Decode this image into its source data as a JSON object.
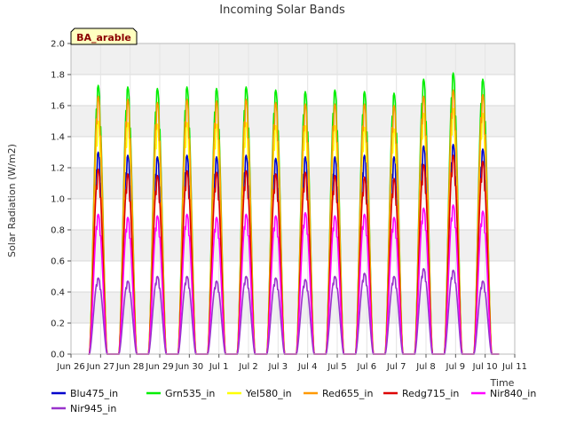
{
  "chart_data": {
    "type": "line",
    "title": "Incoming Solar Bands",
    "xlabel": "Time",
    "ylabel": "Solar Radiation (W/m2)",
    "badge": "BA_arable",
    "ylim": [
      0.0,
      2.0
    ],
    "yticks": [
      "0.0",
      "0.2",
      "0.4",
      "0.6",
      "0.8",
      "1.0",
      "1.2",
      "1.4",
      "1.6",
      "1.8",
      "2.0"
    ],
    "xlim": [
      "Jun 26",
      "Jul 11"
    ],
    "xticks": [
      "Jun 26",
      "Jun 27",
      "Jun 28",
      "Jun 29",
      "Jun 30",
      "Jul 1",
      "Jul 2",
      "Jul 3",
      "Jul 4",
      "Jul 5",
      "Jul 6",
      "Jul 7",
      "Jul 8",
      "Jul 9",
      "Jul 10",
      "Jul 11"
    ],
    "days": [
      "Jun 26",
      "Jun 27",
      "Jun 28",
      "Jun 29",
      "Jun 30",
      "Jul 1",
      "Jul 2",
      "Jul 3",
      "Jul 4",
      "Jul 5",
      "Jul 6",
      "Jul 7",
      "Jul 8",
      "Jul 9"
    ],
    "grid": true,
    "legend_placement": "bottom",
    "series": [
      {
        "name": "Blu475_in",
        "color": "#0000cc",
        "daily_peaks": [
          1.3,
          1.28,
          1.27,
          1.28,
          1.27,
          1.28,
          1.26,
          1.27,
          1.27,
          1.28,
          1.27,
          1.34,
          1.35,
          1.32
        ]
      },
      {
        "name": "Grn535_in",
        "color": "#00ee00",
        "daily_peaks": [
          1.73,
          1.72,
          1.71,
          1.72,
          1.71,
          1.72,
          1.7,
          1.69,
          1.7,
          1.69,
          1.68,
          1.77,
          1.81,
          1.77
        ]
      },
      {
        "name": "Yel580_in",
        "color": "#ffff00",
        "daily_peaks": [
          1.5,
          1.49,
          1.48,
          1.49,
          1.48,
          1.49,
          1.47,
          1.47,
          1.47,
          1.46,
          1.45,
          1.55,
          1.58,
          1.55
        ]
      },
      {
        "name": "Red655_in",
        "color": "#ff9900",
        "daily_peaks": [
          1.66,
          1.64,
          1.62,
          1.64,
          1.63,
          1.64,
          1.62,
          1.61,
          1.61,
          1.61,
          1.6,
          1.66,
          1.7,
          1.67
        ]
      },
      {
        "name": "Redg715_in",
        "color": "#dd0000",
        "daily_peaks": [
          1.19,
          1.16,
          1.15,
          1.18,
          1.17,
          1.18,
          1.16,
          1.17,
          1.15,
          1.14,
          1.13,
          1.22,
          1.28,
          1.24
        ]
      },
      {
        "name": "Nir840_in",
        "color": "#ff00ff",
        "daily_peaks": [
          0.9,
          0.88,
          0.89,
          0.9,
          0.88,
          0.9,
          0.89,
          0.91,
          0.89,
          0.9,
          0.88,
          0.94,
          0.96,
          0.92
        ]
      },
      {
        "name": "Nir945_in",
        "color": "#9933cc",
        "daily_peaks": [
          0.49,
          0.47,
          0.5,
          0.5,
          0.47,
          0.5,
          0.49,
          0.48,
          0.5,
          0.52,
          0.5,
          0.55,
          0.54,
          0.47
        ]
      }
    ]
  }
}
